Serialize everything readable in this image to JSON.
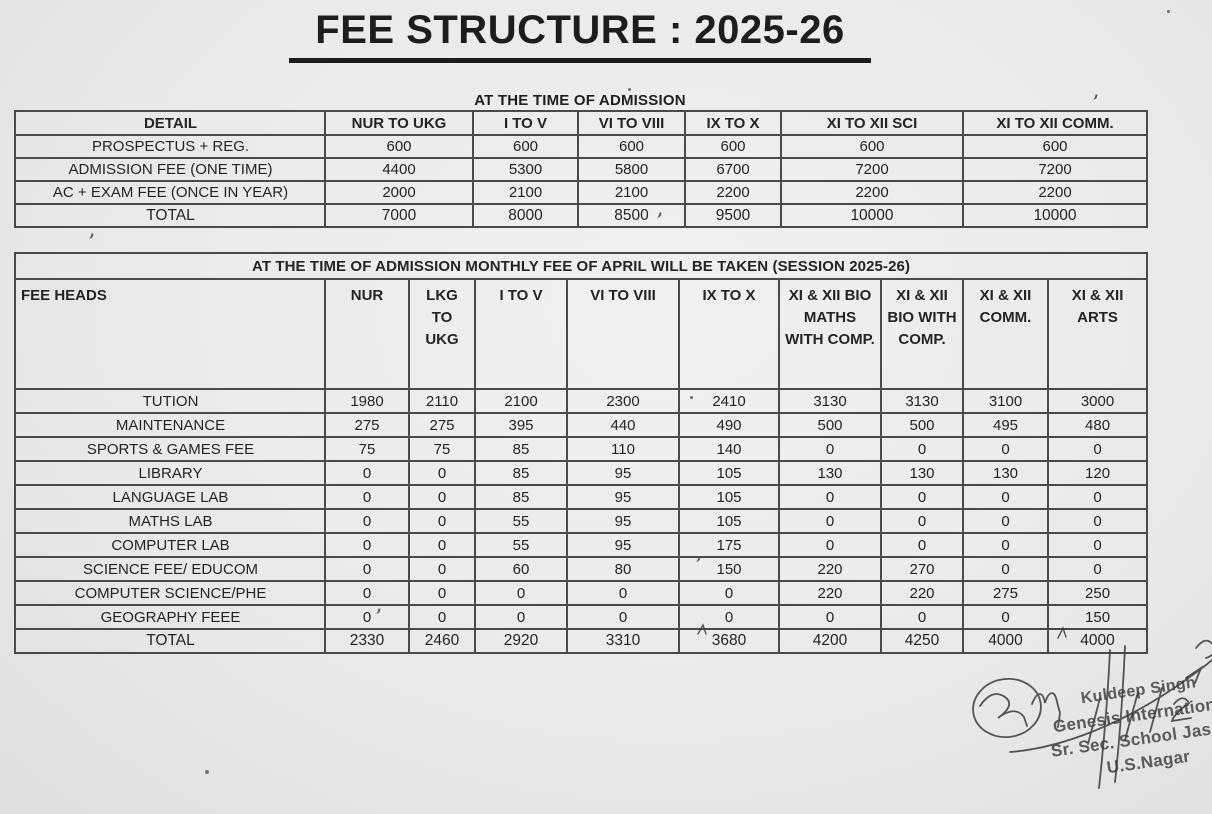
{
  "document": {
    "title": "FEE STRUCTURE : 2025-26",
    "admission_table": {
      "caption": "AT THE TIME OF ADMISSION",
      "columns": [
        "DETAIL",
        "NUR TO UKG",
        "I TO V",
        "VI TO VIII",
        "IX TO X",
        "XI TO XII SCI",
        "XI TO XII COMM."
      ],
      "rows": [
        {
          "label": "PROSPECTUS + REG.",
          "values": [
            "600",
            "600",
            "600",
            "600",
            "600",
            "600"
          ],
          "bold": false
        },
        {
          "label": "ADMISSION FEE (ONE TIME)",
          "values": [
            "4400",
            "5300",
            "5800",
            "6700",
            "7200",
            "7200"
          ],
          "bold": false
        },
        {
          "label": "AC + EXAM FEE (ONCE IN YEAR)",
          "values": [
            "2000",
            "2100",
            "2100",
            "2200",
            "2200",
            "2200"
          ],
          "bold": false
        },
        {
          "label": "TOTAL",
          "values": [
            "7000",
            "8000",
            "8500",
            "9500",
            "10000",
            "10000"
          ],
          "bold": true
        }
      ]
    },
    "monthly_table": {
      "caption": "AT THE TIME OF ADMISSION MONTHLY FEE OF APRIL WILL BE TAKEN (SESSION 2025-26)",
      "columns": [
        "FEE HEADS",
        "NUR",
        "LKG TO UKG",
        "I TO V",
        "VI TO VIII",
        "IX TO X",
        "XI & XII BIO MATHS WITH COMP.",
        "XI & XII BIO WITH COMP.",
        "XI & XII COMM.",
        "XI & XII ARTS"
      ],
      "rows": [
        {
          "label": "TUTION",
          "values": [
            "1980",
            "2110",
            "2100",
            "2300",
            "2410",
            "3130",
            "3130",
            "3100",
            "3000"
          ],
          "bold": false
        },
        {
          "label": "MAINTENANCE",
          "values": [
            "275",
            "275",
            "395",
            "440",
            "490",
            "500",
            "500",
            "495",
            "480"
          ],
          "bold": false
        },
        {
          "label": "SPORTS & GAMES FEE",
          "values": [
            "75",
            "75",
            "85",
            "110",
            "140",
            "0",
            "0",
            "0",
            "0"
          ],
          "bold": false
        },
        {
          "label": "LIBRARY",
          "values": [
            "0",
            "0",
            "85",
            "95",
            "105",
            "130",
            "130",
            "130",
            "120"
          ],
          "bold": false
        },
        {
          "label": "LANGUAGE LAB",
          "values": [
            "0",
            "0",
            "85",
            "95",
            "105",
            "0",
            "0",
            "0",
            "0"
          ],
          "bold": false
        },
        {
          "label": "MATHS LAB",
          "values": [
            "0",
            "0",
            "55",
            "95",
            "105",
            "0",
            "0",
            "0",
            "0"
          ],
          "bold": false
        },
        {
          "label": "COMPUTER LAB",
          "values": [
            "0",
            "0",
            "55",
            "95",
            "175",
            "0",
            "0",
            "0",
            "0"
          ],
          "bold": false
        },
        {
          "label": "SCIENCE FEE/ EDUCOM",
          "values": [
            "0",
            "0",
            "60",
            "80",
            "150",
            "220",
            "270",
            "0",
            "0"
          ],
          "bold": false
        },
        {
          "label": "COMPUTER SCIENCE/PHE",
          "values": [
            "0",
            "0",
            "0",
            "0",
            "0",
            "220",
            "220",
            "275",
            "250"
          ],
          "bold": false
        },
        {
          "label": "GEOGRAPHY FEEE",
          "values": [
            "0",
            "0",
            "0",
            "0",
            "0",
            "0",
            "0",
            "0",
            "150"
          ],
          "bold": false
        },
        {
          "label": "TOTAL",
          "values": [
            "2330",
            "2460",
            "2920",
            "3310",
            "3680",
            "4200",
            "4250",
            "4000",
            "4000"
          ],
          "bold": true
        }
      ]
    },
    "stamp": {
      "lines": [
        "Kuldeep Singh",
        "Genesis International",
        "Sr. Sec. School Jaspur",
        "U.S.Nagar"
      ]
    },
    "colors": {
      "paper": "#eaeae8",
      "ink": "#242424",
      "table_border": "#4a4a4a",
      "stamp_ink": "#4f4f4f",
      "signature_ink": "#3a3a3a"
    }
  }
}
